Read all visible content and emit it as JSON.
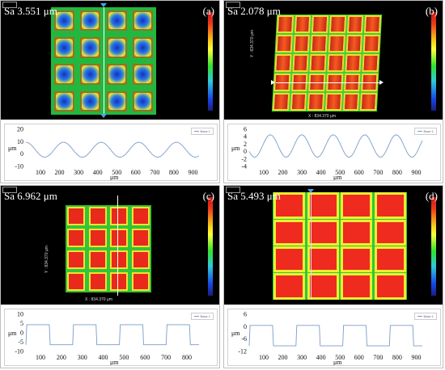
{
  "panels": [
    {
      "id": "a",
      "sa": "Sa 3.551 μm",
      "label": "(a)",
      "profile": {
        "legend": "Base 1",
        "ylabel": "μm",
        "xlabel": "μm",
        "yticks": [
          "20",
          "10",
          "0",
          "-10"
        ],
        "xticks": [
          "100",
          "200",
          "300",
          "400",
          "500",
          "600",
          "700",
          "800",
          "900"
        ],
        "colors": {
          "curve": "#7a9cc8"
        }
      }
    },
    {
      "id": "b",
      "sa": "Sa 2.078 μm",
      "label": "(b)",
      "axis_x_caption": "X : 834.370 μm",
      "axis_y_caption": "Y : 834.370 μm",
      "profile": {
        "legend": "Base 1",
        "ylabel": "μm",
        "xlabel": "μm",
        "yticks": [
          "6",
          "4",
          "2",
          "0",
          "-2",
          "-4"
        ],
        "xticks": [
          "100",
          "200",
          "300",
          "400",
          "500",
          "600",
          "700",
          "800",
          "900"
        ],
        "colors": {
          "curve": "#7a9cc8"
        }
      }
    },
    {
      "id": "c",
      "sa": "Sa 6.962 μm",
      "label": "(c)",
      "axis_x_caption": "X : 834.370 μm",
      "axis_y_caption": "Y : 834.370 μm",
      "profile": {
        "legend": "Base 1",
        "ylabel": "μm",
        "xlabel": "μm",
        "yticks": [
          "10",
          "5",
          "0",
          "-5",
          "-10"
        ],
        "xticks": [
          "100",
          "200",
          "300",
          "400",
          "500",
          "600",
          "700",
          "800"
        ],
        "colors": {
          "curve": "#7a9cc8"
        }
      }
    },
    {
      "id": "d",
      "sa": "Sa 5.493 μm",
      "label": "(d)",
      "profile": {
        "legend": "Base 1",
        "ylabel": "μm",
        "xlabel": "μm",
        "yticks": [
          "6",
          "0",
          "-6",
          "-12"
        ],
        "xticks": [
          "100",
          "200",
          "300",
          "400",
          "500",
          "600",
          "700",
          "800",
          "900"
        ],
        "colors": {
          "curve": "#7a9cc8"
        }
      }
    }
  ],
  "colors": {
    "background": "#000000",
    "accent_scan": "#ffffff",
    "marker": "#4aa3e8"
  }
}
